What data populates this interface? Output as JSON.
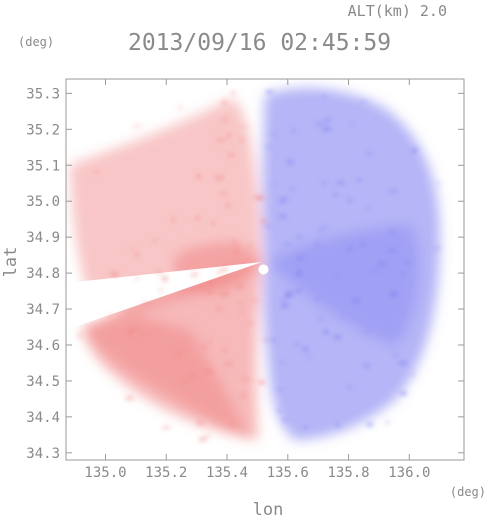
{
  "chart_data": {
    "type": "heatmap",
    "title": "2013/09/16 02:45:59",
    "altitude_label": "ALT(km) 2.0",
    "xlabel": "lon",
    "ylabel": "lat",
    "xunit": "(deg)",
    "yunit": "(deg)",
    "xlim": [
      134.87,
      136.18
    ],
    "ylim": [
      34.28,
      35.34
    ],
    "x_ticks": [
      135.0,
      135.2,
      135.4,
      135.6,
      135.8,
      136.0
    ],
    "x_tick_labels": [
      "135.0",
      "135.2",
      "135.4",
      "135.6",
      "135.8",
      "136.0"
    ],
    "y_ticks": [
      34.3,
      34.4,
      34.5,
      34.6,
      34.7,
      34.8,
      34.9,
      35.0,
      35.1,
      35.2,
      35.3
    ],
    "y_tick_labels": [
      "34.3",
      "34.4",
      "34.5",
      "34.6",
      "34.7",
      "34.8",
      "34.9",
      "35.0",
      "35.1",
      "35.2",
      "35.3"
    ],
    "radar_center": {
      "lon": 135.52,
      "lat": 34.81
    },
    "colors": {
      "positive": "#f08080",
      "negative": "#7878f0",
      "axis": "#9a9a9a",
      "text": "#8a8a8a"
    }
  }
}
